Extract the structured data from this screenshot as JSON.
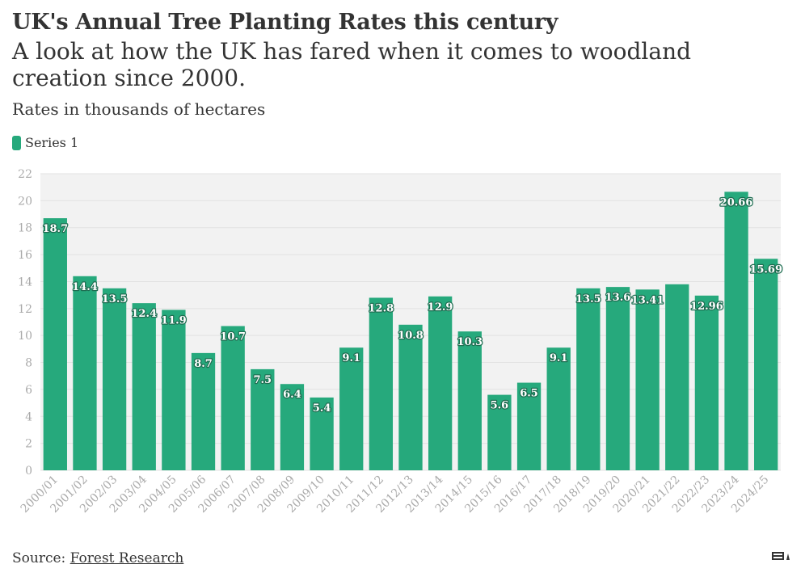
{
  "header": {
    "title": "UK's Annual Tree Planting Rates this century",
    "subtitle": "A look at how the UK has fared when it comes to woodland creation since 2000.",
    "unit_note": "Rates in thousands of hectares"
  },
  "legend": {
    "items": [
      {
        "label": "Series 1",
        "color": "#26a97c"
      }
    ]
  },
  "footer": {
    "source_prefix": "Source: ",
    "source_link": "Forest Research",
    "logo_icon": "forestry-journal-logo-icon"
  },
  "colors": {
    "bar": "#26a97c",
    "plot_background": "#f2f2f2",
    "gridline": "#e2e2e2",
    "tick_label": "#aaaaaa",
    "data_label_text": "#ffffff",
    "data_label_outline": "#1f6e52"
  },
  "chart_data": {
    "type": "bar",
    "categories": [
      "2000/01",
      "2001/02",
      "2002/03",
      "2003/04",
      "2004/05",
      "2005/06",
      "2006/07",
      "2007/08",
      "2008/09",
      "2009/10",
      "2010/11",
      "2011/12",
      "2012/13",
      "2013/14",
      "2014/15",
      "2015/16",
      "2016/17",
      "2017/18",
      "2018/19",
      "2019/20",
      "2020/21",
      "2021/22",
      "2022/23",
      "2023/24",
      "2024/25"
    ],
    "series": [
      {
        "name": "Series 1",
        "values": [
          18.7,
          14.4,
          13.5,
          12.4,
          11.9,
          8.7,
          10.7,
          7.5,
          6.4,
          5.4,
          9.1,
          12.8,
          10.8,
          12.9,
          10.3,
          5.6,
          6.5,
          9.1,
          13.5,
          13.6,
          13.41,
          13.8,
          12.96,
          20.66,
          15.69
        ],
        "labels": [
          "18.7",
          "14.4",
          "13.5",
          "12.4",
          "11.9",
          "8.7",
          "10.7",
          "7.5",
          "6.4",
          "5.4",
          "9.1",
          "12.8",
          "10.8",
          "12.9",
          "10.3",
          "5.6",
          "6.5",
          "9.1",
          "13.5",
          "13.6",
          "13.41",
          "",
          "12.96",
          "20.66",
          "15.69"
        ]
      }
    ],
    "yticks": [
      "0",
      "2",
      "4",
      "6",
      "8",
      "10",
      "12",
      "14",
      "16",
      "18",
      "20",
      "22"
    ],
    "ylim": [
      0,
      22
    ],
    "ystep": 2,
    "grid": true,
    "legend_position": "top-left",
    "xlabel": "",
    "ylabel": ""
  }
}
